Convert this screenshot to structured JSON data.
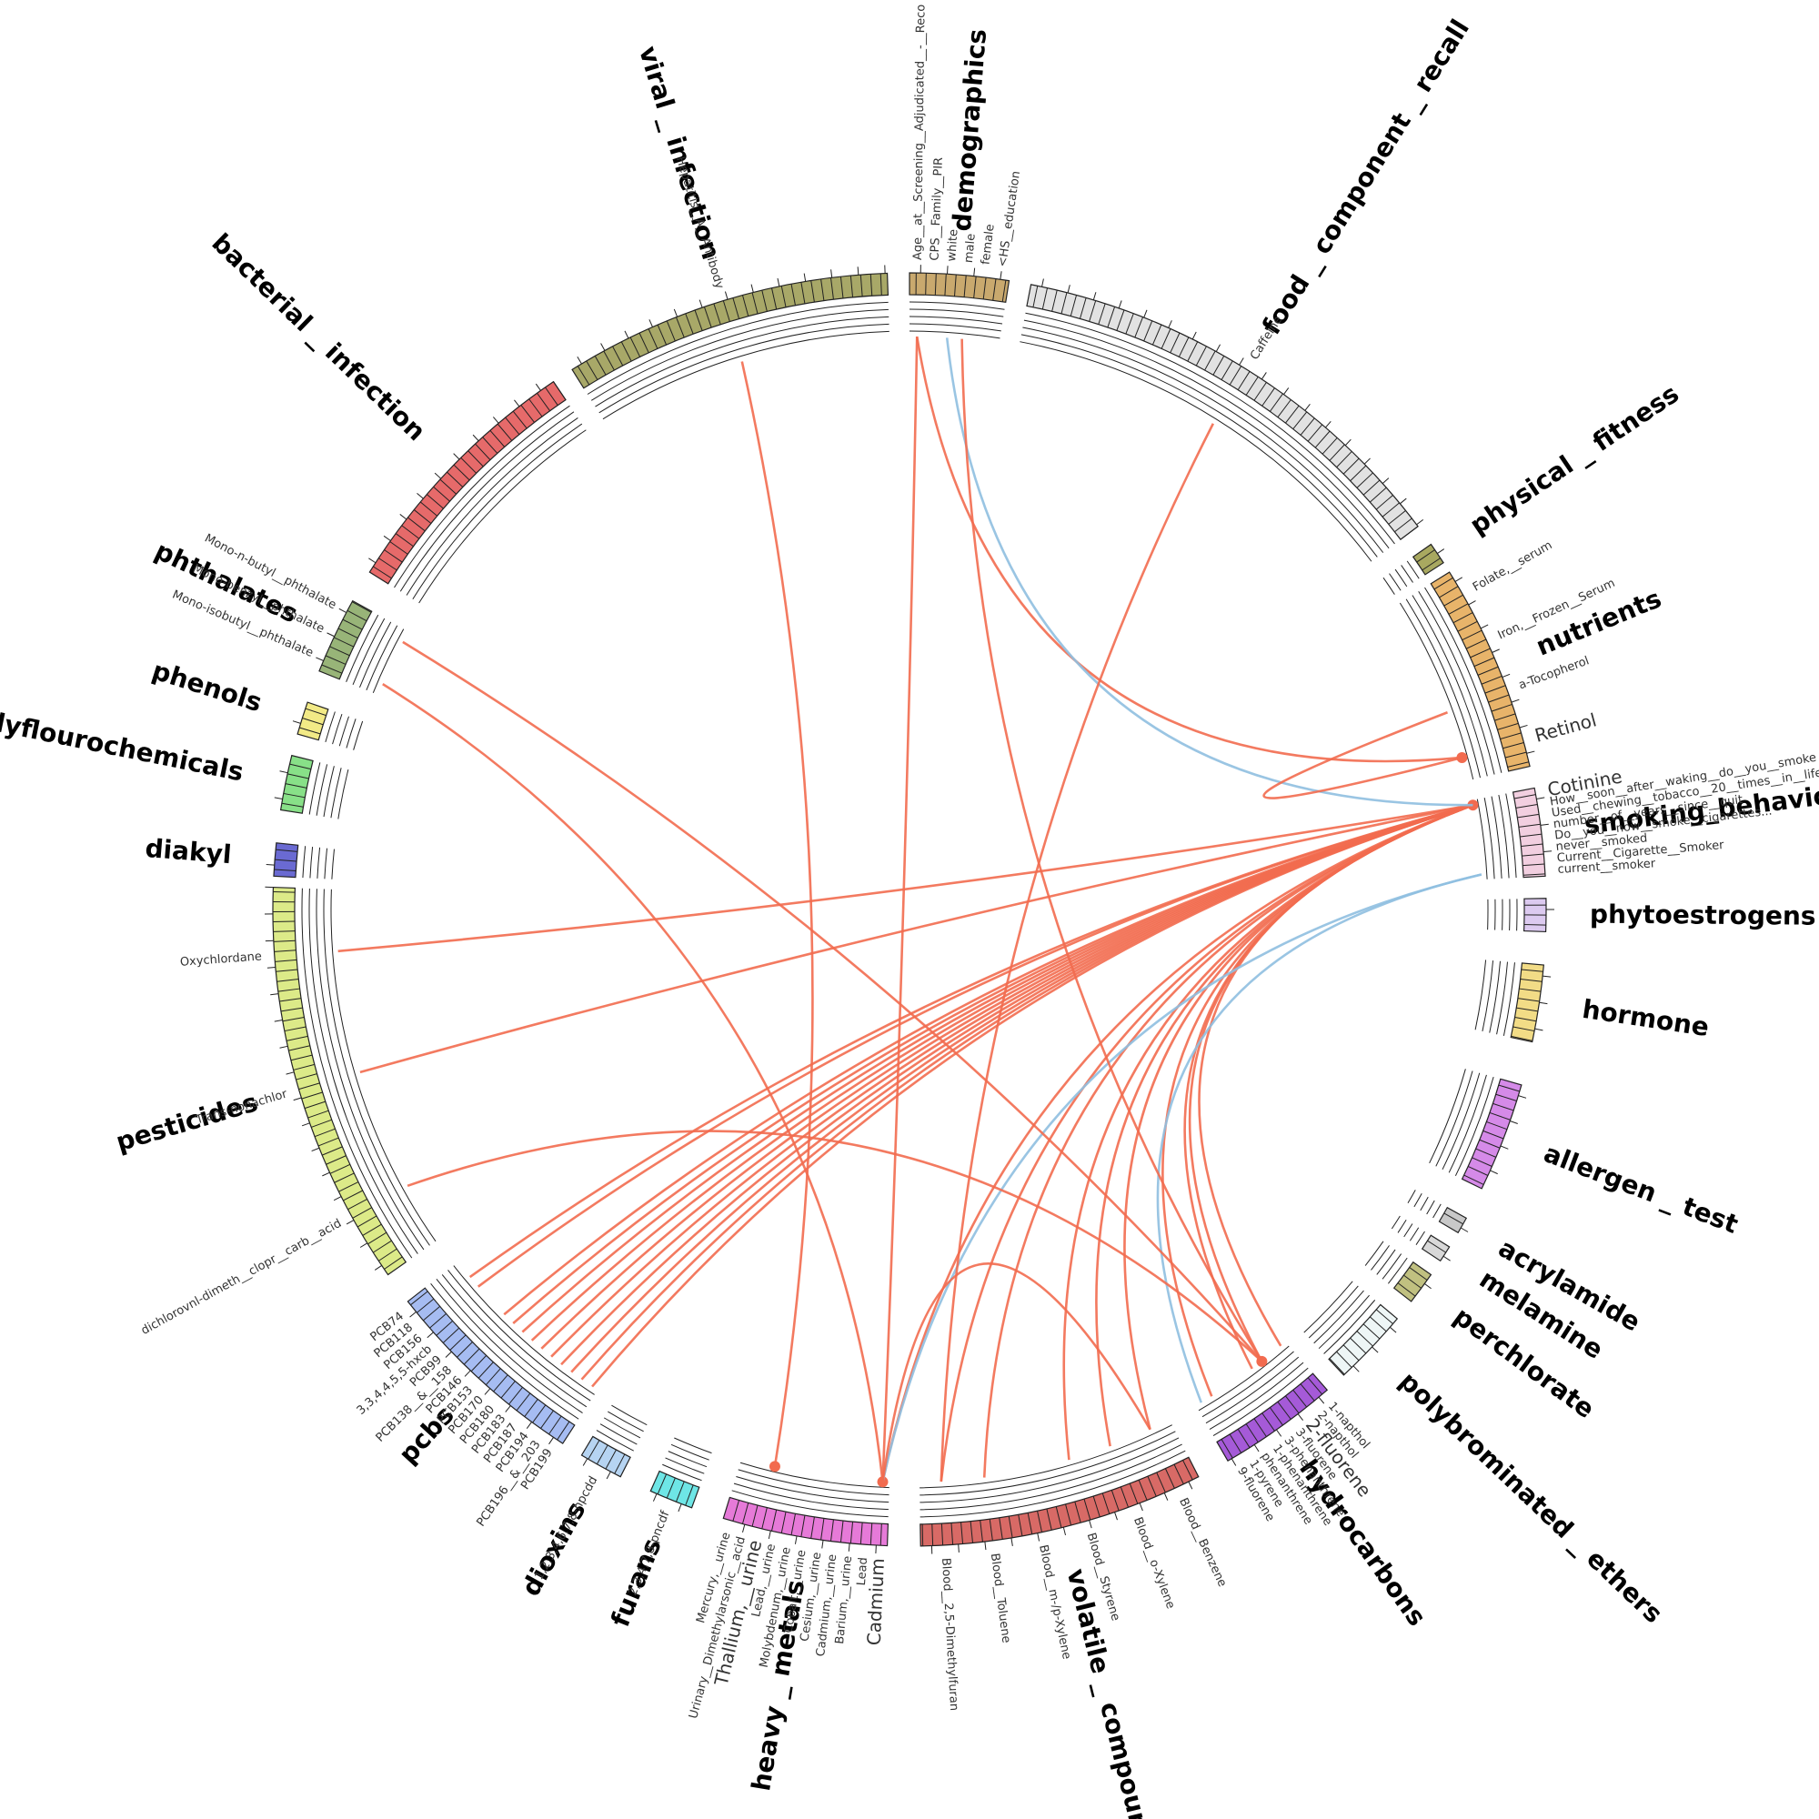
{
  "groups": [
    {
      "name": "demographics",
      "color": "#c9a96e",
      "features": [
        "Age__at__Screening__Adjudicated__-__Reco",
        "CPS__Family__PIR",
        "white",
        "male",
        "female",
        "<HS__education"
      ]
    },
    {
      "name": "food _ component _ recall",
      "color": "#e2e2e2",
      "features": [
        "Caffeine"
      ]
    },
    {
      "name": "physical _ fitness",
      "color": "#a8a860",
      "features": []
    },
    {
      "name": "nutrients",
      "color": "#e8b46a",
      "features": [
        "Folate,__serum",
        "Iron,__Frozen__Serum",
        "a-Tocopherol",
        {
          "label": "Retinol",
          "color": "#f26b4f"
        }
      ]
    },
    {
      "name": "smoking_behavior",
      "color": "#f2cfe0",
      "features": [
        {
          "label": "Cotinine",
          "color": "#f26b4f"
        },
        "How__soon__after__waking__do__you__smoke",
        "Used__chewing__tobacco__20__times__in__life",
        "number__of__years__since__quit",
        "Do__you__now__smoke__cigarettes...",
        "never__smoked",
        "Current__Cigarette__Smoker",
        "current__smoker"
      ]
    },
    {
      "name": "phytoestrogens",
      "color": "#dccaf0",
      "features": []
    },
    {
      "name": "hormone",
      "color": "#f2dc86",
      "features": []
    },
    {
      "name": "allergen _ test",
      "color": "#d58ae8",
      "features": []
    },
    {
      "name": "acrylamide",
      "color": "#c8c8c8",
      "features": []
    },
    {
      "name": "melamine",
      "color": "#d8d8d8",
      "features": []
    },
    {
      "name": "perchlorate",
      "color": "#c0c080",
      "features": []
    },
    {
      "name": "polybrominated _ ethers",
      "color": "#eef6f6",
      "features": []
    },
    {
      "name": "hydrocarbons",
      "color": "#a55ad8",
      "features": [
        "1-napthol",
        "2-napthol",
        {
          "label": "2-fluorene",
          "color": "#f26b4f"
        },
        "3-fluorene",
        "3-phenanthrene",
        "1-phenanthrene",
        "phenanthrene",
        "1-pyrene",
        "9-fluorene"
      ]
    },
    {
      "name": "volatile _ compounds",
      "color": "#d86a66",
      "features": [
        "Blood__Benzene",
        "Blood__o-Xylene",
        "Blood__Styrene",
        "Blood__m-/p-Xylene",
        "Blood__Toluene",
        "Blood__2,5-Dimethylfuran"
      ]
    },
    {
      "name": "heavy _ metals",
      "color": "#e67ad8",
      "features": [
        {
          "label": "Cadmium",
          "color": "#f26b4f"
        },
        "Lead",
        "Barium,__urine",
        "Cadmium,__urine",
        "Cesium,__urine",
        "Cobalt,__urine",
        "Molybdenum,__urine",
        "Lead,__urine",
        {
          "label": "Thallium,__urine",
          "color": "#f26b4f"
        },
        "Urinary__Dimethylarsonic__acid",
        "Mercury,__urine"
      ]
    },
    {
      "name": "furans",
      "color": "#6ee6e6",
      "features": [
        "2,3,4,7,8-pncdf"
      ]
    },
    {
      "name": "dioxins",
      "color": "#b6d4f2",
      "features": [
        "1,2,3,4,6,7,8-hpcdd"
      ]
    },
    {
      "name": "pcbs",
      "color": "#a6bcf2",
      "features": [
        "PCB199",
        "PCB196__&__203",
        "PCB194",
        "PCB187",
        "PCB183",
        "PCB180",
        "PCB170",
        "PCB153",
        "PCB146",
        "PCB138__&__158",
        "PCB99",
        "3,3,4,4,5,5-hxcb",
        "PCB156",
        "PCB118",
        "PCB74"
      ]
    },
    {
      "name": "pesticides",
      "color": "#dcea88",
      "features": [
        "dichlorovnl-dimeth__clopr__carb__acid",
        "Trans-nonachlor",
        "Oxychlordane"
      ]
    },
    {
      "name": "diakyl",
      "color": "#6a6ad2",
      "features": []
    },
    {
      "name": "polyflourochemicals",
      "color": "#88e088",
      "features": []
    },
    {
      "name": "phenols",
      "color": "#f2ea86",
      "features": []
    },
    {
      "name": "phthalates",
      "color": "#98b478",
      "features": [
        "Mono-isobutyl__phthalate",
        "Mono-benzyl__phthalate",
        "Mono-n-butyl__phthalate"
      ]
    },
    {
      "name": "bacterial _ infection",
      "color": "#e66a6a",
      "features": []
    },
    {
      "name": "viral _ infection",
      "color": "#a8a868",
      "features": [
        "Hepatitis__A__Antibody"
      ]
    }
  ],
  "links": [
    {
      "from": "Cotinine",
      "to": "PCB199",
      "color": "#f26b4f"
    },
    {
      "from": "Cotinine",
      "to": "PCB196__&__203",
      "color": "#f26b4f"
    },
    {
      "from": "Cotinine",
      "to": "PCB194",
      "color": "#f26b4f"
    },
    {
      "from": "Cotinine",
      "to": "PCB187",
      "color": "#f26b4f"
    },
    {
      "from": "Cotinine",
      "to": "PCB183",
      "color": "#f26b4f"
    },
    {
      "from": "Cotinine",
      "to": "PCB180",
      "color": "#f26b4f"
    },
    {
      "from": "Cotinine",
      "to": "PCB170",
      "color": "#f26b4f"
    },
    {
      "from": "Cotinine",
      "to": "PCB153",
      "color": "#f26b4f"
    },
    {
      "from": "Cotinine",
      "to": "PCB146",
      "color": "#f26b4f"
    },
    {
      "from": "Cotinine",
      "to": "PCB138__&__158",
      "color": "#f26b4f"
    },
    {
      "from": "Cotinine",
      "to": "PCB156",
      "color": "#f26b4f"
    },
    {
      "from": "Cotinine",
      "to": "PCB118",
      "color": "#f26b4f"
    },
    {
      "from": "Cotinine",
      "to": "Trans-nonachlor",
      "color": "#f26b4f"
    },
    {
      "from": "Cotinine",
      "to": "Oxychlordane",
      "color": "#f26b4f"
    },
    {
      "from": "Cotinine",
      "to": "Blood__Benzene",
      "color": "#f26b4f"
    },
    {
      "from": "Cotinine",
      "to": "Blood__o-Xylene",
      "color": "#f26b4f"
    },
    {
      "from": "Cotinine",
      "to": "Blood__Styrene",
      "color": "#f26b4f"
    },
    {
      "from": "Cotinine",
      "to": "Blood__Toluene",
      "color": "#f26b4f"
    },
    {
      "from": "Cotinine",
      "to": "Blood__2,5-Dimethylfuran",
      "color": "#f26b4f"
    },
    {
      "from": "Cotinine",
      "to": "1-napthol",
      "color": "#f26b4f"
    },
    {
      "from": "Cotinine",
      "to": "2-fluorene",
      "color": "#f26b4f"
    },
    {
      "from": "Cotinine",
      "to": "3-fluorene",
      "color": "#f26b4f"
    },
    {
      "from": "Cotinine",
      "to": "1-pyrene",
      "color": "#f26b4f"
    },
    {
      "from": "Cotinine",
      "to": "Cadmium",
      "color": "#f26b4f"
    },
    {
      "from": "current__smoker",
      "to": "9-fluorene",
      "color": "#8fbfe0"
    },
    {
      "from": "current__smoker",
      "to": "Cadmium",
      "color": "#8fbfe0"
    },
    {
      "from": "Age__at__Screening__Adjudicated__-__Reco",
      "to": "Cadmium",
      "color": "#f26b4f"
    },
    {
      "from": "Age__at__Screening__Adjudicated__-__Reco",
      "to": "Retinol",
      "color": "#f26b4f"
    },
    {
      "from": "white",
      "to": "Cotinine",
      "color": "#8fbfe0"
    },
    {
      "from": "male",
      "to": "2-fluorene",
      "color": "#f26b4f"
    },
    {
      "from": "Caffeine",
      "to": "Blood__2,5-Dimethylfuran",
      "color": "#f26b4f"
    },
    {
      "from": "Hepatitis__A__Antibody",
      "to": "Thallium,__urine",
      "color": "#f26b4f"
    },
    {
      "from": "Mono-n-butyl__phthalate",
      "to": "2-fluorene",
      "color": "#f26b4f"
    },
    {
      "from": "Mono-isobutyl__phthalate",
      "to": "Cadmium",
      "color": "#f26b4f"
    },
    {
      "from": "dichlorovnl-dimeth__clopr__carb__acid",
      "to": "2-fluorene",
      "color": "#f26b4f"
    },
    {
      "from": "Cadmium",
      "to": "Blood__Benzene",
      "color": "#f26b4f"
    },
    {
      "from": "Retinol",
      "to": "a-Tocopherol",
      "color": "#f26b4f"
    }
  ]
}
